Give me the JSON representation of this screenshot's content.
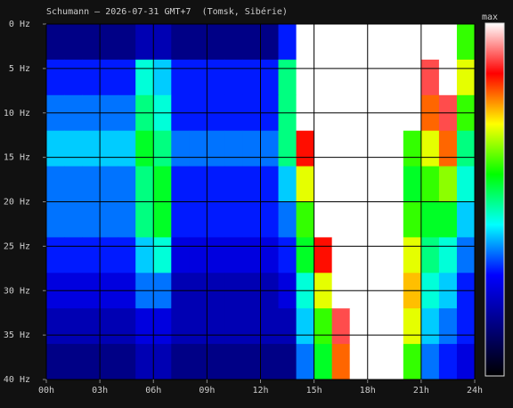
{
  "chart_data": {
    "type": "spectrogram",
    "title": "Schumann — 2026-07-31 GMT+7  (Tomsk, Sibérie)",
    "colorbar_label": "max",
    "xlim": [
      0,
      24
    ],
    "ylim": [
      0,
      40
    ],
    "xticks": [
      {
        "value": 0,
        "label": "00h"
      },
      {
        "value": 3,
        "label": "03h"
      },
      {
        "value": 6,
        "label": "06h"
      },
      {
        "value": 9,
        "label": "09h"
      },
      {
        "value": 12,
        "label": "12h"
      },
      {
        "value": 15,
        "label": "15h"
      },
      {
        "value": 18,
        "label": "18h"
      },
      {
        "value": 21,
        "label": "21h"
      },
      {
        "value": 24,
        "label": "24h"
      }
    ],
    "yticks": [
      {
        "value": 0,
        "label": "0 Hz"
      },
      {
        "value": 5,
        "label": "5 Hz"
      },
      {
        "value": 10,
        "label": "10 Hz"
      },
      {
        "value": 15,
        "label": "15 Hz"
      },
      {
        "value": 20,
        "label": "20 Hz"
      },
      {
        "value": 25,
        "label": "25 Hz"
      },
      {
        "value": 30,
        "label": "30 Hz"
      },
      {
        "value": 35,
        "label": "35 Hz"
      },
      {
        "value": 40,
        "label": "40 Hz"
      }
    ],
    "colormap": [
      "#000000",
      "#000080",
      "#0000ff",
      "#00ffff",
      "#00ff00",
      "#ffff00",
      "#ff0000",
      "#ffffff"
    ],
    "grid": true,
    "z": [
      [
        0.15,
        0.15,
        0.15,
        0.15,
        0.15,
        0.2,
        0.2,
        0.15,
        0.15,
        0.15,
        0.15,
        0.15,
        0.15,
        0.3,
        1,
        1,
        1,
        1,
        1,
        1,
        1,
        1,
        1,
        0.6
      ],
      [
        0.3,
        0.3,
        0.3,
        0.3,
        0.3,
        0.45,
        0.4,
        0.3,
        0.3,
        0.3,
        0.3,
        0.3,
        0.3,
        0.5,
        1,
        1,
        1,
        1,
        1,
        1,
        1,
        0.9,
        1,
        0.7
      ],
      [
        0.35,
        0.35,
        0.35,
        0.35,
        0.35,
        0.5,
        0.45,
        0.3,
        0.3,
        0.3,
        0.3,
        0.3,
        0.3,
        0.5,
        1,
        1,
        1,
        1,
        1,
        1,
        1,
        0.8,
        0.9,
        0.6
      ],
      [
        0.4,
        0.4,
        0.4,
        0.4,
        0.4,
        0.55,
        0.5,
        0.35,
        0.35,
        0.35,
        0.35,
        0.35,
        0.35,
        0.5,
        0.85,
        1,
        1,
        1,
        1,
        1,
        0.6,
        0.7,
        0.8,
        0.5
      ],
      [
        0.35,
        0.35,
        0.35,
        0.35,
        0.35,
        0.5,
        0.55,
        0.3,
        0.3,
        0.3,
        0.3,
        0.3,
        0.3,
        0.4,
        0.7,
        1,
        1,
        1,
        1,
        1,
        0.55,
        0.6,
        0.65,
        0.45
      ],
      [
        0.35,
        0.35,
        0.35,
        0.35,
        0.35,
        0.5,
        0.55,
        0.3,
        0.3,
        0.3,
        0.3,
        0.3,
        0.3,
        0.35,
        0.6,
        1,
        1,
        1,
        1,
        1,
        0.6,
        0.55,
        0.55,
        0.4
      ],
      [
        0.3,
        0.3,
        0.3,
        0.3,
        0.3,
        0.4,
        0.45,
        0.25,
        0.25,
        0.25,
        0.25,
        0.25,
        0.25,
        0.3,
        0.55,
        0.85,
        1,
        1,
        1,
        1,
        0.7,
        0.5,
        0.45,
        0.35
      ],
      [
        0.25,
        0.25,
        0.25,
        0.25,
        0.25,
        0.35,
        0.35,
        0.2,
        0.2,
        0.2,
        0.2,
        0.2,
        0.2,
        0.25,
        0.45,
        0.7,
        1,
        1,
        1,
        1,
        0.75,
        0.45,
        0.4,
        0.3
      ],
      [
        0.2,
        0.2,
        0.2,
        0.2,
        0.2,
        0.25,
        0.25,
        0.2,
        0.2,
        0.2,
        0.2,
        0.2,
        0.2,
        0.2,
        0.4,
        0.6,
        0.9,
        1,
        1,
        1,
        0.7,
        0.4,
        0.35,
        0.3
      ],
      [
        0.15,
        0.15,
        0.15,
        0.15,
        0.15,
        0.2,
        0.2,
        0.15,
        0.15,
        0.15,
        0.15,
        0.15,
        0.15,
        0.15,
        0.35,
        0.55,
        0.8,
        1,
        1,
        1,
        0.6,
        0.35,
        0.3,
        0.25
      ]
    ]
  }
}
